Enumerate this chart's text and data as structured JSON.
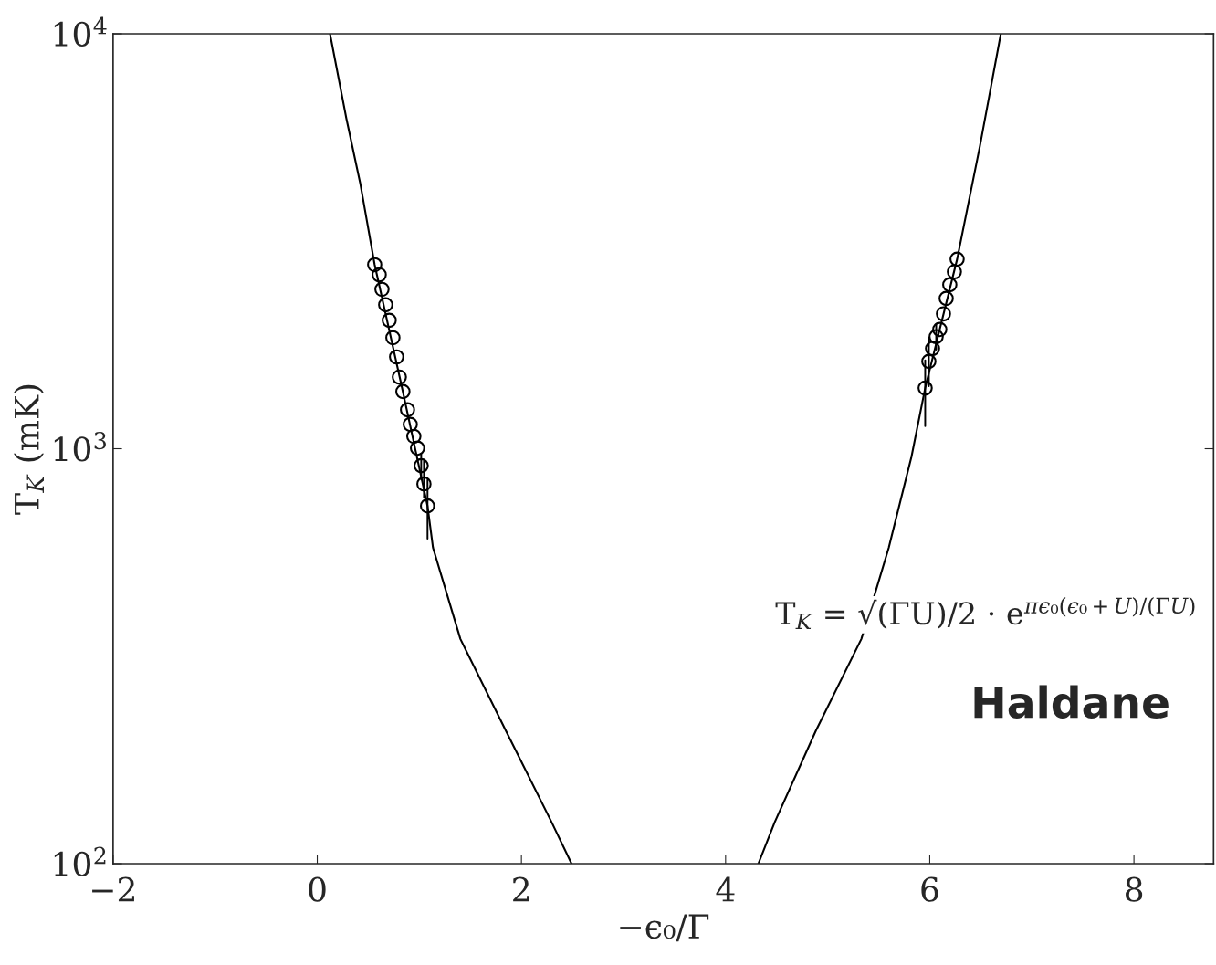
{
  "chart_data": {
    "type": "scatter",
    "xlabel": "−ϵ₀/Γ",
    "ylabel": "T$_{K}$ (mK)",
    "log": "y",
    "xlim": [
      -2,
      8.78
    ],
    "ylim": [
      100,
      10000
    ],
    "xticks": [
      {
        "value": -2,
        "label": "−2"
      },
      0,
      2,
      4,
      6,
      8
    ],
    "yticks": [
      {
        "value": 100,
        "label": "10$^{2}$"
      },
      {
        "value": 1000,
        "label": "10$^{3}$"
      },
      {
        "value": 10000,
        "label": "10$^{4}$"
      }
    ],
    "grid": false,
    "marker": "circle",
    "annotations": [
      "T$_{K}$ = √(ΓU)/2 · e$^{πϵ₀(ϵ₀+U)/(ΓU)}$",
      "Haldane"
    ],
    "series": [
      {
        "color": "#000000",
        "x": [
          0.5625,
          0.607,
          0.634,
          0.67,
          0.705,
          0.741,
          0.777,
          0.804,
          0.839,
          0.884,
          0.911,
          0.946,
          0.982,
          1.018,
          1.045,
          1.08
        ],
        "values": [
          2776,
          2625,
          2421,
          2222,
          2039,
          1851,
          1664,
          1488,
          1373,
          1241,
          1144,
          1071,
          1003,
          910,
          822,
          728
        ],
        "errors": [
          null,
          null,
          null,
          null,
          null,
          null,
          null,
          null,
          null,
          null,
          null,
          null,
          null,
          [
            843,
            974
          ],
          [
            764,
            934
          ],
          [
            607,
            841
          ]
        ]
      },
      {
        "color": "#000000",
        "x": [
          5.955,
          5.991,
          6.027,
          6.063,
          6.098,
          6.134,
          6.161,
          6.196,
          6.241,
          6.268
        ],
        "values": [
          1400,
          1623,
          1743,
          1862,
          1938,
          2113,
          2302,
          2484,
          2668,
          2863
        ],
        "errors": [
          [
            1133,
            1633
          ],
          [
            1415,
            1853
          ],
          null,
          [
            1733,
            1999
          ],
          null,
          null,
          null,
          null,
          null,
          null
        ]
      },
      {
        "type": "line",
        "color": "#000000",
        "marker": "none",
        "line_style": "solid",
        "x": [
          0.125,
          0.286,
          0.42,
          0.5625,
          0.821,
          1.08,
          1.134,
          1.402,
          1.848,
          2.295,
          2.491
        ],
        "values": [
          10000,
          6237,
          4375,
          2776,
          1436,
          728,
          577,
          348,
          209,
          126,
          100
        ]
      },
      {
        "type": "line",
        "color": "#000000",
        "marker": "none",
        "line_style": "solid",
        "x": [
          4.321,
          4.482,
          4.884,
          5.33,
          5.598,
          5.821,
          5.955,
          6.268,
          6.491,
          6.696
        ],
        "values": [
          100,
          126,
          209,
          348,
          577,
          957,
          1400,
          2863,
          5358,
          10000
        ]
      }
    ]
  }
}
